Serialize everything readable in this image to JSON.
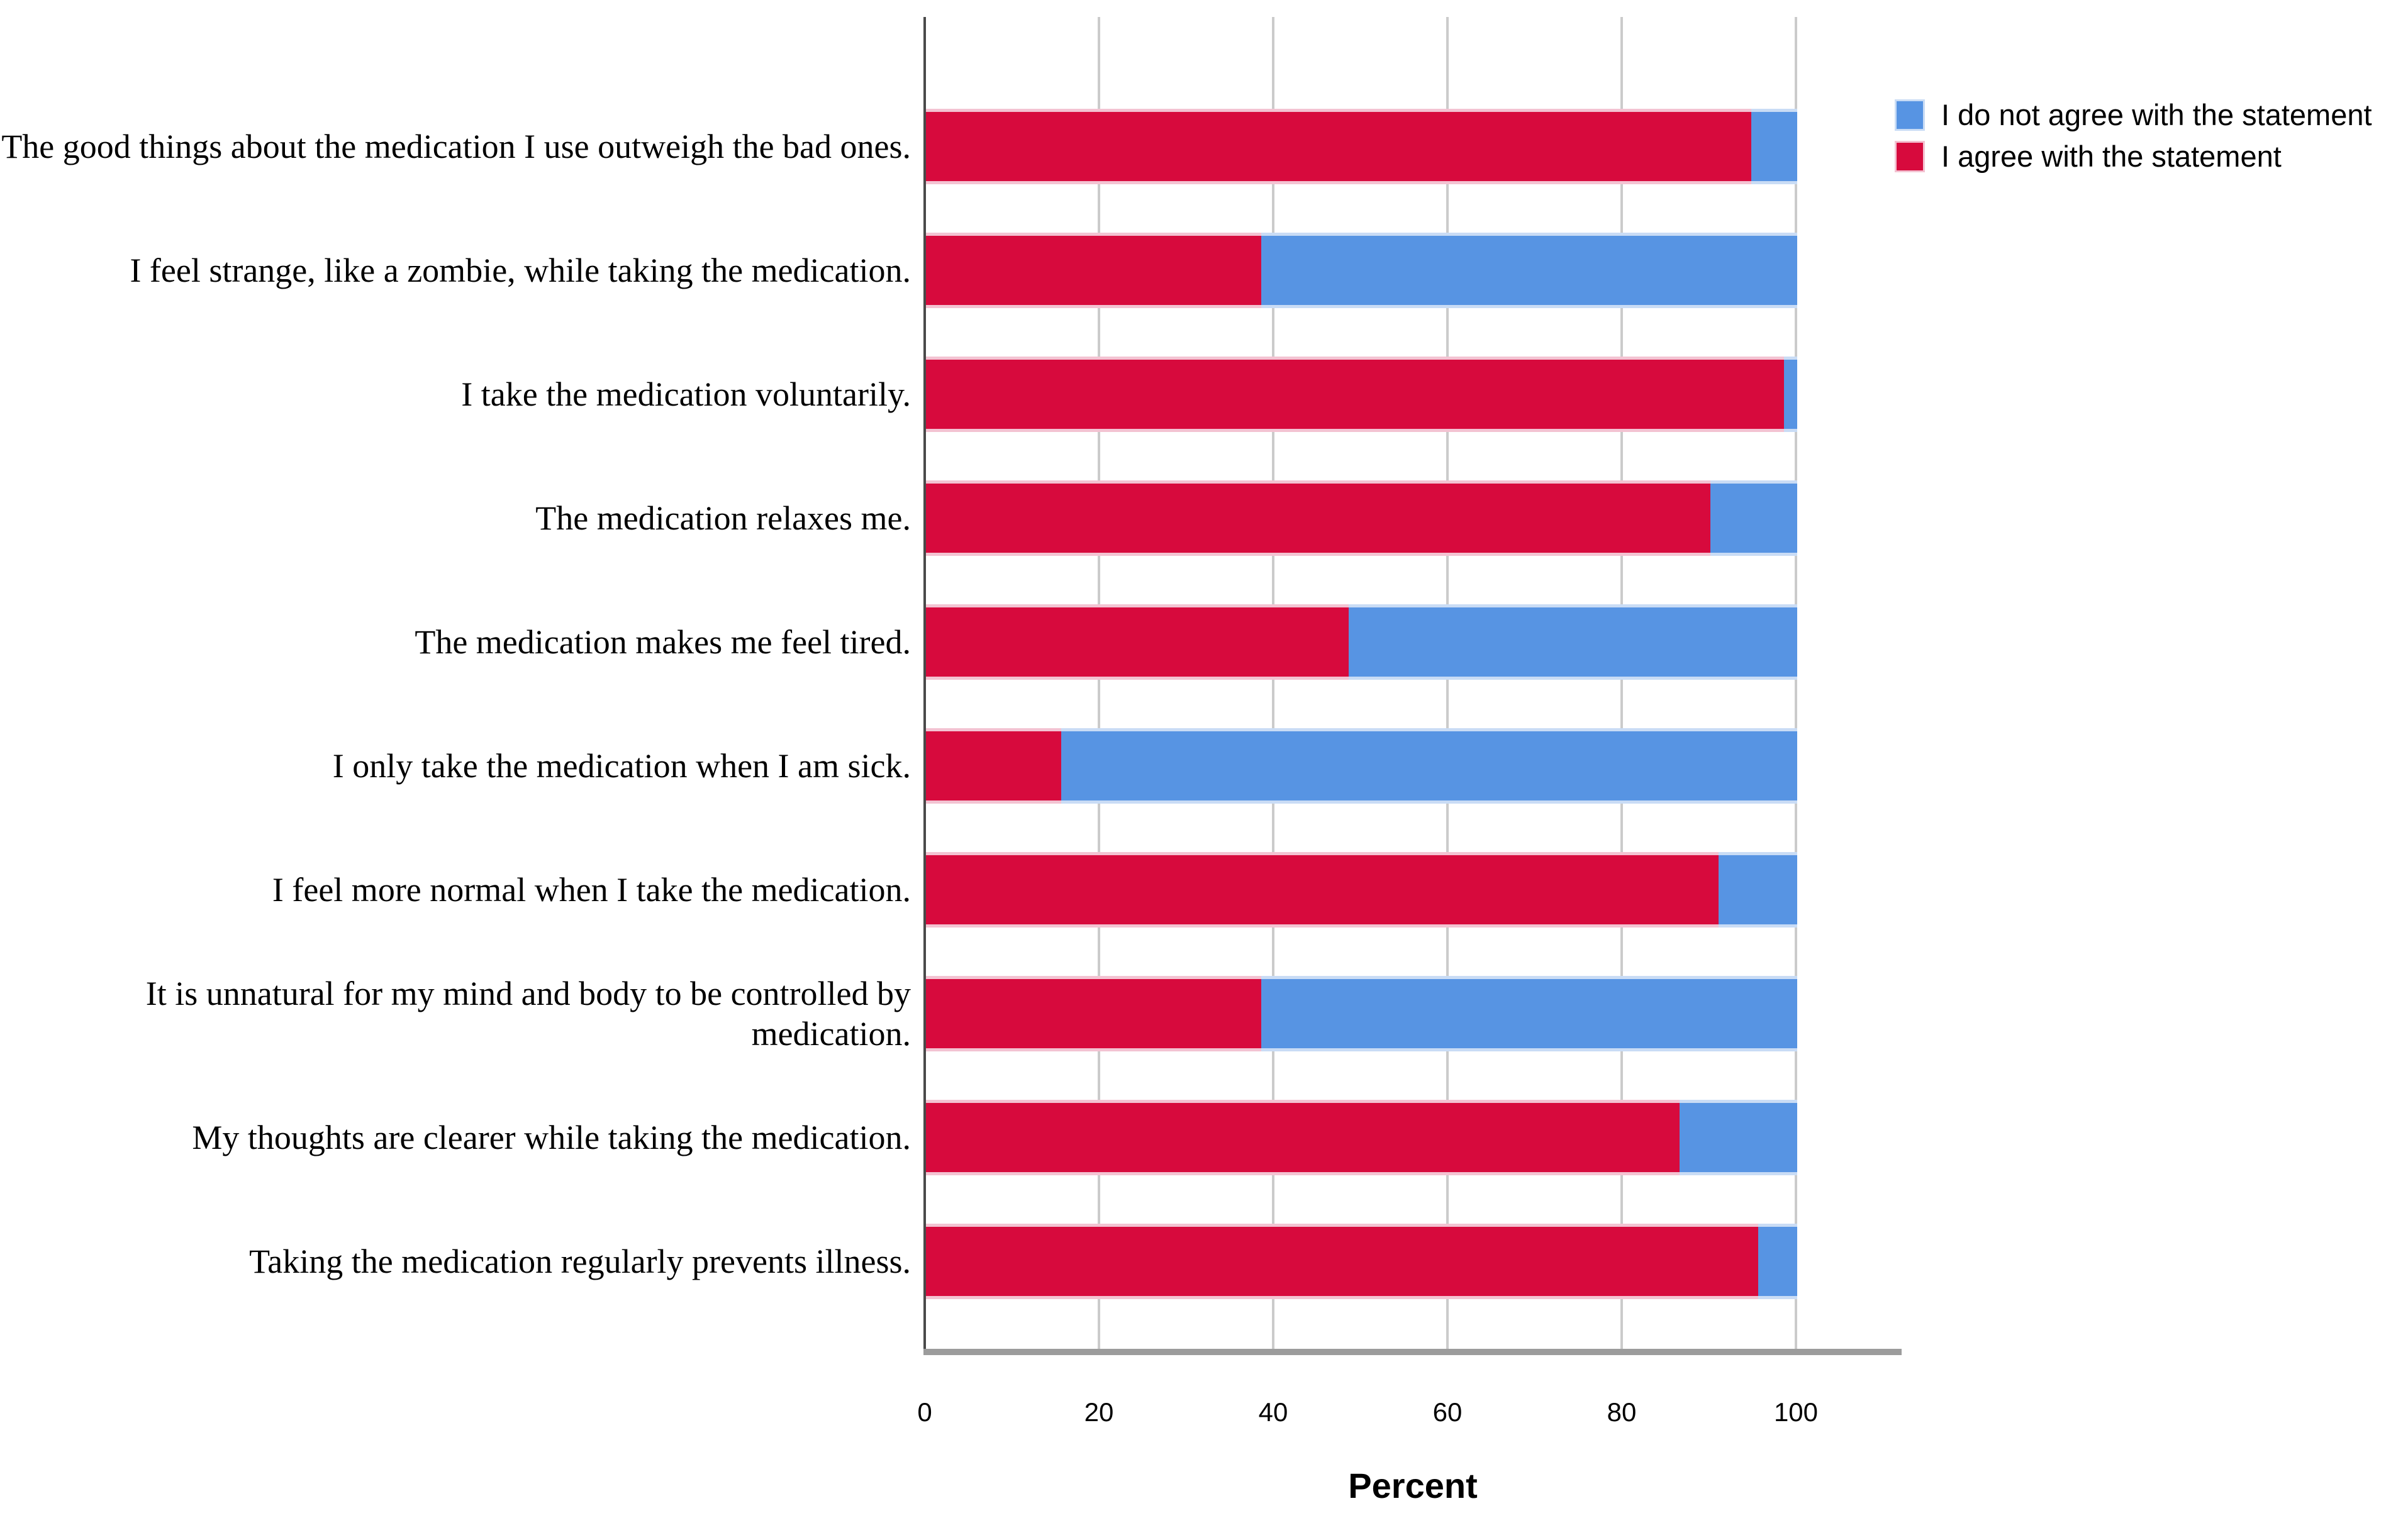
{
  "colors": {
    "background": "#FFFFFF",
    "gridline": "#CBCBCB",
    "y_axis_line": "#4A4A4A",
    "x_axis_line": "#9C9C9C",
    "text": "#000000"
  },
  "chart_data": {
    "type": "bar",
    "orientation": "horizontal",
    "stacked": true,
    "categories": [
      "The good things about the medication I use outweigh the bad ones.",
      "I feel strange, like a zombie, while taking the medication.",
      "I take the medication voluntarily.",
      "The medication relaxes me.",
      "The medication makes me feel tired.",
      "I only take the medication when I am sick.",
      "I feel more normal when I take the medication.",
      "It is unnatural for my mind and body to be controlled by medication.",
      "My thoughts are clearer while taking the medication.",
      "Taking the medication regularly prevents illness."
    ],
    "series": [
      {
        "name": "I do not agree with the statement",
        "color": "#5794E3",
        "edge_color": "#C9DCF5",
        "values": [
          5.3,
          61.5,
          1.5,
          10,
          51.5,
          84.5,
          9,
          61.5,
          13.5,
          4.5
        ]
      },
      {
        "name": "I agree with the statement",
        "color": "#D70A3D",
        "edge_color": "#F3C3D2",
        "values": [
          94.7,
          38.5,
          98.5,
          90,
          48.5,
          15.5,
          91,
          38.5,
          86.5,
          95.5
        ]
      }
    ],
    "stack_order": [
      1,
      0
    ],
    "xlabel": "Percent",
    "xticks": [
      0,
      20,
      40,
      60,
      80,
      100
    ],
    "xlim": [
      0,
      112
    ],
    "grid": "vertical-gridlines-only",
    "legend_position": "top-right"
  }
}
